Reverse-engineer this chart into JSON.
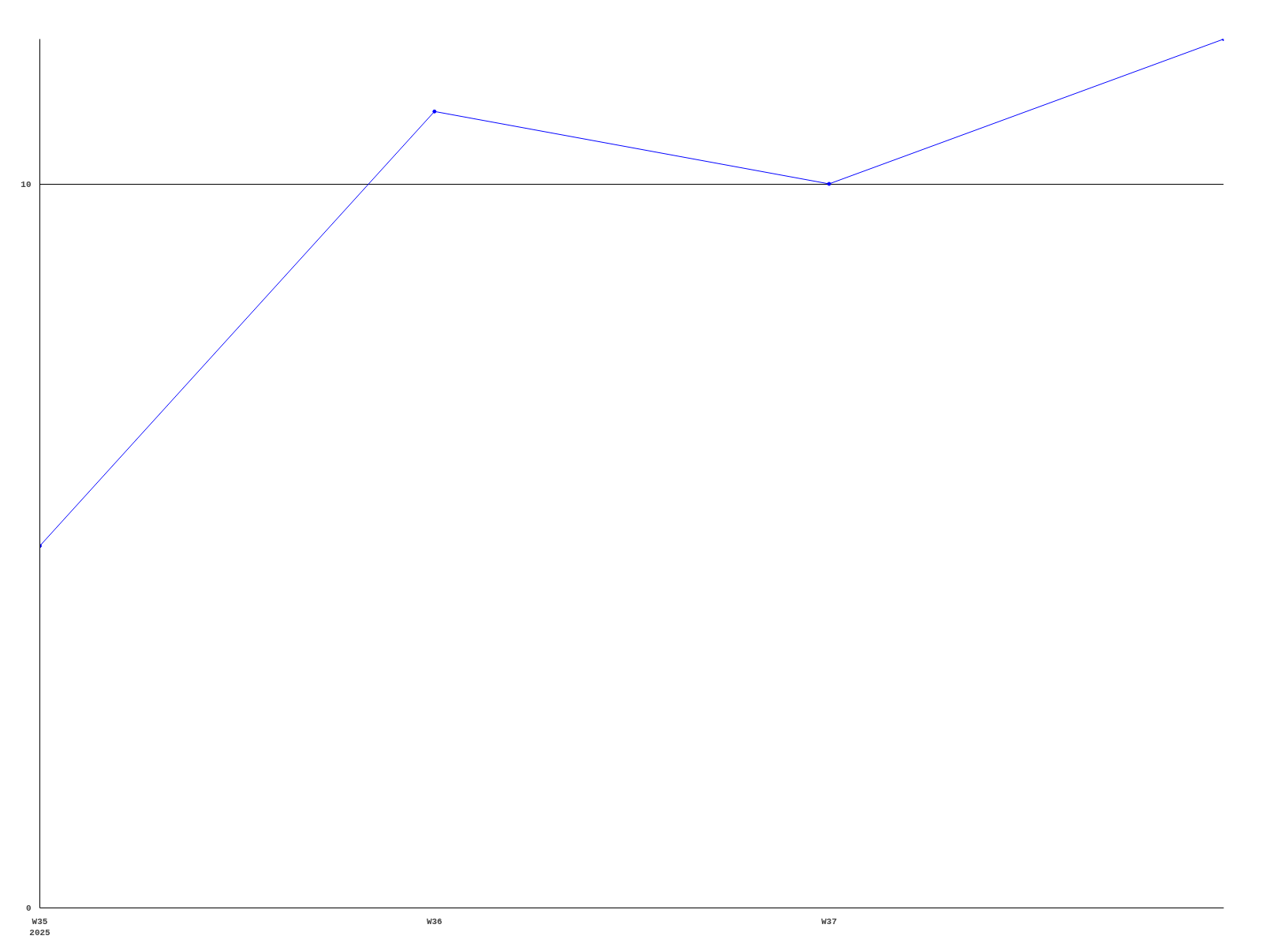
{
  "chart_data": {
    "type": "line",
    "categories": [
      "W35\n2025",
      "W36",
      "W37",
      null
    ],
    "series": [
      {
        "color": "#0000ff",
        "values": [
          5,
          11,
          10,
          12
        ]
      }
    ],
    "ylim": [
      0,
      12
    ],
    "yticks": [
      0,
      10
    ],
    "grid": "y",
    "marker": "circle",
    "line_style": "solid"
  }
}
